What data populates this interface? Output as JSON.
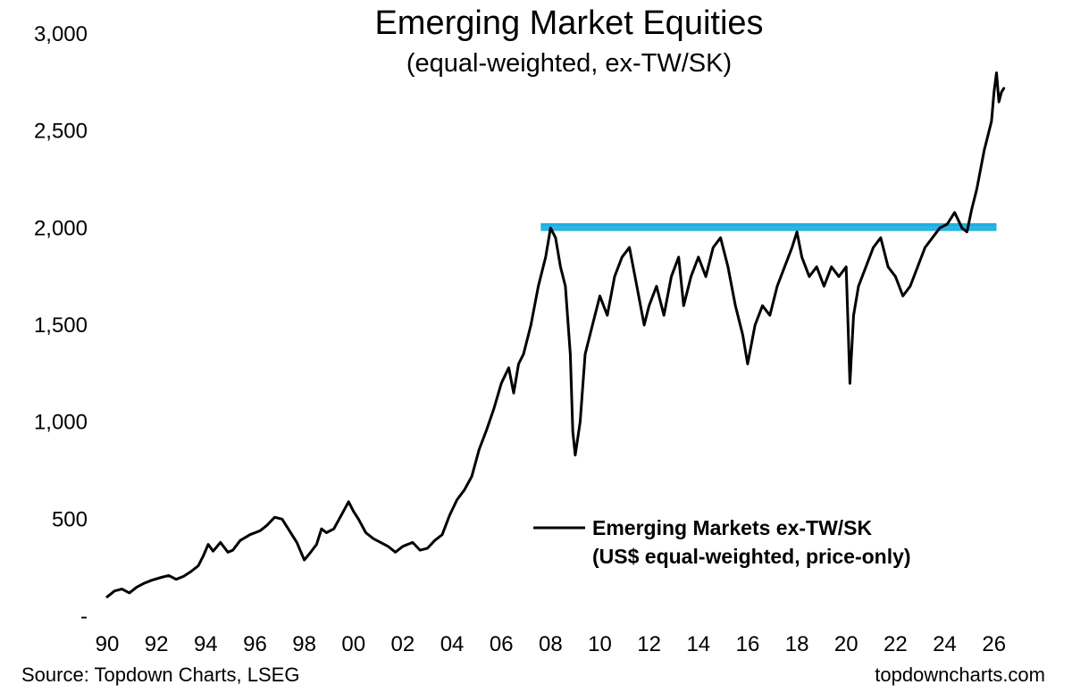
{
  "chart_data": {
    "type": "line",
    "title": "Emerging Market Equities",
    "subtitle": "(equal-weighted, ex-TW/SK)",
    "xlabel": "",
    "ylabel": "",
    "x_ticks": [
      "90",
      "92",
      "94",
      "96",
      "98",
      "00",
      "02",
      "04",
      "06",
      "08",
      "10",
      "12",
      "14",
      "16",
      "18",
      "20",
      "22",
      "24",
      "26"
    ],
    "y_ticks": [
      "-",
      "500",
      "1,000",
      "1,500",
      "2,000",
      "2,500",
      "3,000"
    ],
    "y_tick_values": [
      0,
      500,
      1000,
      1500,
      2000,
      2500,
      3000
    ],
    "xlim": [
      1990,
      2026.7
    ],
    "ylim": [
      0,
      3000
    ],
    "grid": false,
    "legend_position": "bottom-right",
    "legend_lines": [
      "Emerging Markets ex-TW/SK",
      "(US$ equal-weighted, price-only)"
    ],
    "source": "Source: Topdown Charts, LSEG",
    "website": "topdowncharts.com",
    "series": [
      {
        "name": "Emerging Markets ex-TW/SK (US$ equal-weighted, price-only)",
        "color": "#000000",
        "x": [
          1990.0,
          1990.3,
          1990.6,
          1990.9,
          1991.2,
          1991.5,
          1991.8,
          1992.2,
          1992.5,
          1992.8,
          1993.1,
          1993.4,
          1993.7,
          1993.9,
          1994.1,
          1994.3,
          1994.6,
          1994.9,
          1995.1,
          1995.4,
          1995.8,
          1996.2,
          1996.5,
          1996.8,
          1997.1,
          1997.4,
          1997.7,
          1998.0,
          1998.2,
          1998.5,
          1998.7,
          1998.9,
          1999.2,
          1999.5,
          1999.8,
          2000.0,
          2000.2,
          2000.5,
          2000.8,
          2001.1,
          2001.4,
          2001.7,
          2002.0,
          2002.4,
          2002.7,
          2003.0,
          2003.3,
          2003.6,
          2003.9,
          2004.2,
          2004.5,
          2004.8,
          2005.1,
          2005.4,
          2005.7,
          2006.0,
          2006.3,
          2006.5,
          2006.7,
          2006.9,
          2007.2,
          2007.5,
          2007.8,
          2008.0,
          2008.2,
          2008.4,
          2008.6,
          2008.8,
          2008.9,
          2009.0,
          2009.2,
          2009.4,
          2009.7,
          2010.0,
          2010.3,
          2010.6,
          2010.9,
          2011.2,
          2011.5,
          2011.8,
          2012.0,
          2012.3,
          2012.6,
          2012.9,
          2013.2,
          2013.4,
          2013.7,
          2014.0,
          2014.3,
          2014.6,
          2014.9,
          2015.2,
          2015.5,
          2015.8,
          2016.0,
          2016.3,
          2016.6,
          2016.9,
          2017.2,
          2017.5,
          2017.8,
          2018.0,
          2018.2,
          2018.5,
          2018.8,
          2019.1,
          2019.4,
          2019.7,
          2020.0,
          2020.15,
          2020.3,
          2020.5,
          2020.8,
          2021.1,
          2021.4,
          2021.7,
          2022.0,
          2022.3,
          2022.6,
          2022.9,
          2023.2,
          2023.5,
          2023.8,
          2024.1,
          2024.4,
          2024.7,
          2024.9,
          2025.1,
          2025.3,
          2025.6,
          2025.9,
          2026.0,
          2026.1,
          2026.2,
          2026.3,
          2026.4
        ],
        "y": [
          100,
          130,
          140,
          120,
          150,
          170,
          185,
          200,
          210,
          190,
          205,
          230,
          260,
          310,
          370,
          335,
          380,
          330,
          340,
          390,
          420,
          440,
          470,
          510,
          500,
          440,
          380,
          290,
          320,
          370,
          450,
          430,
          450,
          520,
          590,
          540,
          500,
          430,
          400,
          380,
          360,
          330,
          360,
          380,
          340,
          350,
          390,
          420,
          520,
          600,
          650,
          720,
          860,
          960,
          1070,
          1200,
          1280,
          1150,
          1300,
          1350,
          1500,
          1700,
          1850,
          2000,
          1950,
          1800,
          1700,
          1350,
          950,
          830,
          1000,
          1350,
          1500,
          1650,
          1550,
          1750,
          1850,
          1900,
          1700,
          1500,
          1600,
          1700,
          1550,
          1750,
          1850,
          1600,
          1750,
          1850,
          1750,
          1900,
          1950,
          1800,
          1600,
          1450,
          1300,
          1500,
          1600,
          1550,
          1700,
          1800,
          1900,
          1980,
          1850,
          1750,
          1800,
          1700,
          1800,
          1750,
          1800,
          1200,
          1550,
          1700,
          1800,
          1900,
          1950,
          1800,
          1750,
          1650,
          1700,
          1800,
          1900,
          1950,
          2000,
          2020,
          2080,
          2000,
          1980,
          2100,
          2200,
          2400,
          2550,
          2700,
          2800,
          2650,
          2700,
          2720
        ]
      }
    ],
    "annotations": [
      {
        "type": "horizontal_band",
        "color": "#1fb0e0",
        "y_values": [
          1990,
          2000,
          2010,
          2020
        ],
        "x_range": [
          2007.6,
          2026.1
        ]
      }
    ]
  }
}
